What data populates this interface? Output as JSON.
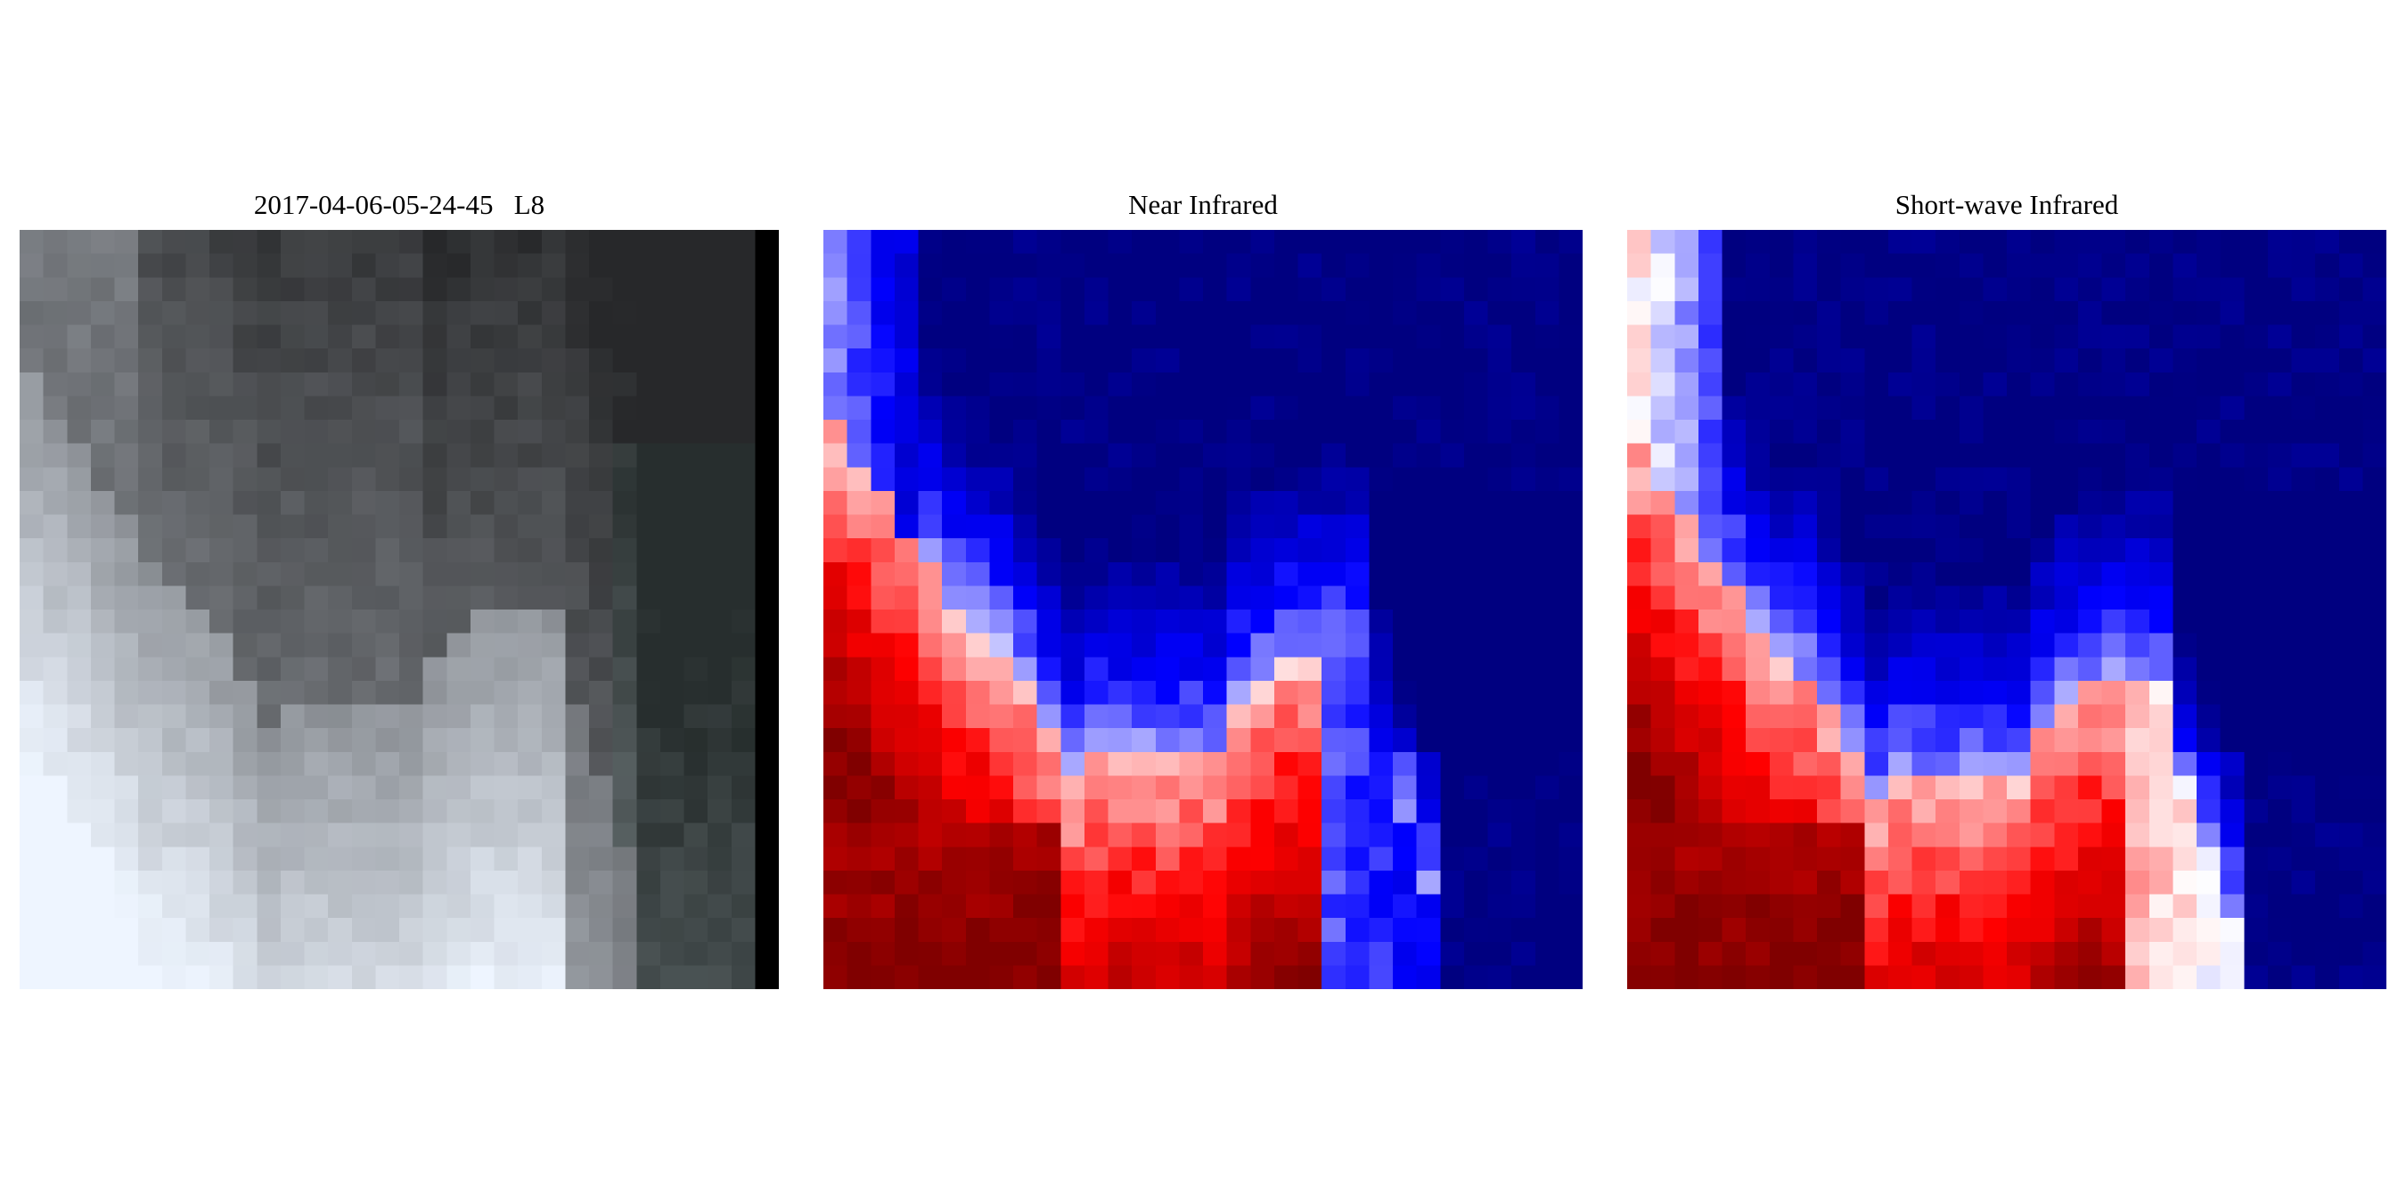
{
  "panels": [
    {
      "title": "2017-04-06-05-24-45   L8",
      "kind": "rgb",
      "icon": "satellite-rgb-image"
    },
    {
      "title": "Near Infrared",
      "kind": "nir",
      "colormap": "bwr",
      "icon": "nir-heatmap"
    },
    {
      "title": "Short-wave Infrared",
      "kind": "swir",
      "colormap": "bwr",
      "icon": "swir-heatmap"
    }
  ],
  "colors": {
    "blue": "#0000ff",
    "white": "#ffffff",
    "red": "#ff0000",
    "dark_red": "#800000",
    "dark_blue": "#000080"
  }
}
